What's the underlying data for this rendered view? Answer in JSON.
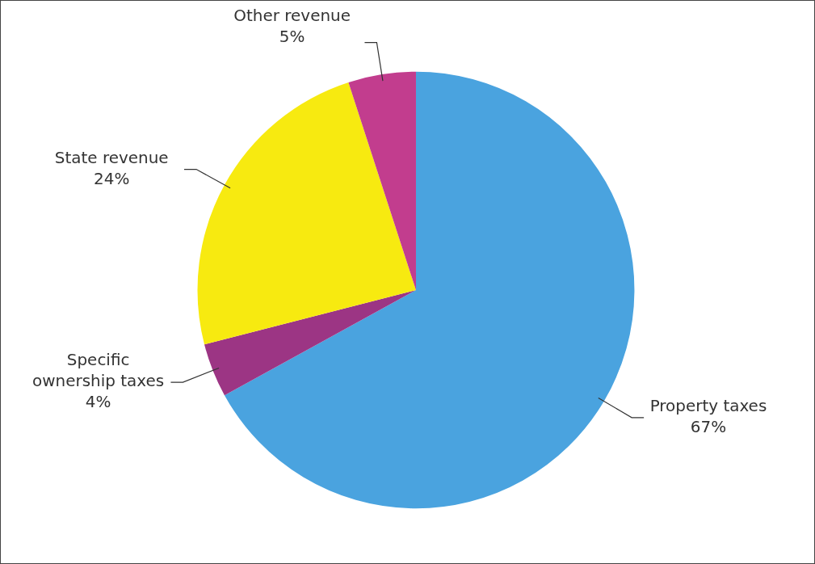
{
  "chart_data": {
    "type": "pie",
    "categories": [
      "Property taxes",
      "Specific ownership taxes",
      "State revenue",
      "Other revenue"
    ],
    "values": [
      67,
      4,
      24,
      5
    ],
    "value_labels": [
      "67%",
      "4%",
      "24%",
      "5%"
    ],
    "colors": [
      "#4aa3df",
      "#9c3584",
      "#f7ea10",
      "#c23d8e"
    ],
    "legend": false
  }
}
